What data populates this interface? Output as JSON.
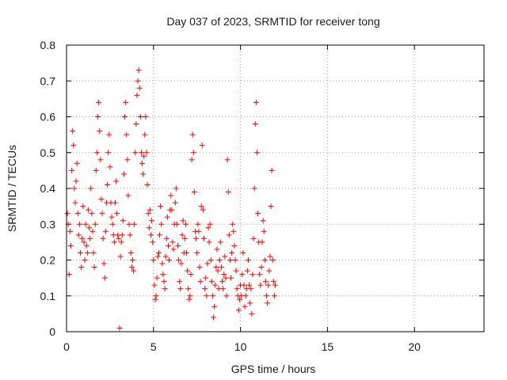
{
  "chart_data": {
    "type": "scatter",
    "title": "Day 037 of 2023, SRMTID for receiver tong",
    "xlabel": "GPS time / hours",
    "ylabel": "SRMTID / TECUs",
    "xlim": [
      0,
      24
    ],
    "ylim": [
      0,
      0.8
    ],
    "xticks": [
      0,
      5,
      10,
      15,
      20
    ],
    "xtick_labels": [
      "0",
      "5",
      "10",
      "15",
      "20"
    ],
    "yticks": [
      0,
      0.1,
      0.2,
      0.3,
      0.4,
      0.5,
      0.6,
      0.7,
      0.8
    ],
    "ytick_labels": [
      "0",
      "0.1",
      "0.2",
      "0.3",
      "0.4",
      "0.5",
      "0.6",
      "0.7",
      "0.8"
    ],
    "grid": true,
    "marker": "plus",
    "color": "#ff0000",
    "series": [
      {
        "name": "SRMTID",
        "points": [
          [
            0.05,
            0.33
          ],
          [
            0.1,
            0.3
          ],
          [
            0.15,
            0.16
          ],
          [
            0.2,
            0.28
          ],
          [
            0.25,
            0.24
          ],
          [
            0.3,
            0.45
          ],
          [
            0.35,
            0.56
          ],
          [
            0.4,
            0.52
          ],
          [
            0.45,
            0.4
          ],
          [
            0.5,
            0.36
          ],
          [
            0.55,
            0.42
          ],
          [
            0.6,
            0.47
          ],
          [
            0.65,
            0.33
          ],
          [
            0.7,
            0.27
          ],
          [
            0.75,
            0.3
          ],
          [
            0.8,
            0.22
          ],
          [
            0.85,
            0.18
          ],
          [
            0.9,
            0.26
          ],
          [
            0.95,
            0.35
          ],
          [
            1.0,
            0.25
          ],
          [
            1.05,
            0.2
          ],
          [
            1.1,
            0.3
          ],
          [
            1.15,
            0.24
          ],
          [
            1.2,
            0.22
          ],
          [
            1.25,
            0.34
          ],
          [
            1.3,
            0.29
          ],
          [
            1.35,
            0.26
          ],
          [
            1.4,
            0.4
          ],
          [
            1.45,
            0.33
          ],
          [
            1.5,
            0.28
          ],
          [
            1.55,
            0.22
          ],
          [
            1.6,
            0.18
          ],
          [
            1.65,
            0.3
          ],
          [
            1.7,
            0.45
          ],
          [
            1.75,
            0.5
          ],
          [
            1.8,
            0.6
          ],
          [
            1.85,
            0.64
          ],
          [
            1.9,
            0.56
          ],
          [
            1.95,
            0.48
          ],
          [
            2.0,
            0.37
          ],
          [
            2.05,
            0.33
          ],
          [
            2.1,
            0.26
          ],
          [
            2.15,
            0.19
          ],
          [
            2.2,
            0.15
          ],
          [
            2.25,
            0.28
          ],
          [
            2.3,
            0.36
          ],
          [
            2.35,
            0.41
          ],
          [
            2.4,
            0.5
          ],
          [
            2.45,
            0.55
          ],
          [
            2.5,
            0.46
          ],
          [
            2.55,
            0.36
          ],
          [
            2.6,
            0.32
          ],
          [
            2.65,
            0.3
          ],
          [
            2.7,
            0.27
          ],
          [
            2.75,
            0.25
          ],
          [
            2.8,
            0.36
          ],
          [
            2.85,
            0.42
          ],
          [
            2.9,
            0.33
          ],
          [
            2.95,
            0.27
          ],
          [
            3.0,
            0.26
          ],
          [
            3.05,
            0.01
          ],
          [
            3.1,
            0.21
          ],
          [
            3.15,
            0.25
          ],
          [
            3.2,
            0.27
          ],
          [
            3.25,
            0.31
          ],
          [
            3.3,
            0.44
          ],
          [
            3.35,
            0.6
          ],
          [
            3.4,
            0.64
          ],
          [
            3.45,
            0.55
          ],
          [
            3.5,
            0.48
          ],
          [
            3.55,
            0.38
          ],
          [
            3.6,
            0.3
          ],
          [
            3.65,
            0.27
          ],
          [
            3.7,
            0.22
          ],
          [
            3.75,
            0.18
          ],
          [
            3.8,
            0.2
          ],
          [
            3.85,
            0.17
          ],
          [
            3.9,
            0.3
          ],
          [
            3.95,
            0.5
          ],
          [
            4.0,
            0.58
          ],
          [
            4.05,
            0.66
          ],
          [
            4.1,
            0.7
          ],
          [
            4.15,
            0.73
          ],
          [
            4.2,
            0.68
          ],
          [
            4.25,
            0.6
          ],
          [
            4.3,
            0.5
          ],
          [
            4.35,
            0.47
          ],
          [
            4.4,
            0.44
          ],
          [
            4.45,
            0.49
          ],
          [
            4.5,
            0.55
          ],
          [
            4.55,
            0.6
          ],
          [
            4.6,
            0.5
          ],
          [
            4.65,
            0.41
          ],
          [
            4.7,
            0.33
          ],
          [
            4.75,
            0.29
          ],
          [
            4.8,
            0.34
          ],
          [
            4.85,
            0.27
          ],
          [
            4.9,
            0.31
          ],
          [
            4.95,
            0.25
          ],
          [
            5.0,
            0.2
          ],
          [
            5.05,
            0.13
          ],
          [
            5.1,
            0.09
          ],
          [
            5.15,
            0.1
          ],
          [
            5.2,
            0.15
          ],
          [
            5.25,
            0.21
          ],
          [
            5.3,
            0.22
          ],
          [
            5.35,
            0.27
          ],
          [
            5.4,
            0.35
          ],
          [
            5.45,
            0.3
          ],
          [
            5.5,
            0.19
          ],
          [
            5.55,
            0.16
          ],
          [
            5.6,
            0.14
          ],
          [
            5.65,
            0.12
          ],
          [
            5.7,
            0.21
          ],
          [
            5.75,
            0.26
          ],
          [
            5.8,
            0.32
          ],
          [
            5.85,
            0.24
          ],
          [
            5.9,
            0.2
          ],
          [
            5.95,
            0.34
          ],
          [
            6.0,
            0.38
          ],
          [
            6.05,
            0.34
          ],
          [
            6.1,
            0.25
          ],
          [
            6.15,
            0.23
          ],
          [
            6.2,
            0.3
          ],
          [
            6.25,
            0.36
          ],
          [
            6.3,
            0.4
          ],
          [
            6.35,
            0.3
          ],
          [
            6.4,
            0.24
          ],
          [
            6.45,
            0.2
          ],
          [
            6.5,
            0.14
          ],
          [
            6.55,
            0.12
          ],
          [
            6.6,
            0.19
          ],
          [
            6.65,
            0.27
          ],
          [
            6.7,
            0.31
          ],
          [
            6.75,
            0.22
          ],
          [
            6.8,
            0.26
          ],
          [
            6.85,
            0.3
          ],
          [
            6.9,
            0.22
          ],
          [
            6.95,
            0.17
          ],
          [
            7.0,
            0.12
          ],
          [
            7.05,
            0.09
          ],
          [
            7.1,
            0.1
          ],
          [
            7.15,
            0.16
          ],
          [
            7.2,
            0.48
          ],
          [
            7.25,
            0.55
          ],
          [
            7.3,
            0.5
          ],
          [
            7.35,
            0.39
          ],
          [
            7.4,
            0.28
          ],
          [
            7.45,
            0.26
          ],
          [
            7.5,
            0.22
          ],
          [
            7.55,
            0.3
          ],
          [
            7.6,
            0.28
          ],
          [
            7.65,
            0.18
          ],
          [
            7.7,
            0.14
          ],
          [
            7.75,
            0.35
          ],
          [
            7.8,
            0.52
          ],
          [
            7.85,
            0.34
          ],
          [
            7.9,
            0.26
          ],
          [
            7.95,
            0.12
          ],
          [
            8.0,
            0.15
          ],
          [
            8.05,
            0.1
          ],
          [
            8.1,
            0.19
          ],
          [
            8.15,
            0.29
          ],
          [
            8.2,
            0.25
          ],
          [
            8.25,
            0.3
          ],
          [
            8.3,
            0.2
          ],
          [
            8.35,
            0.14
          ],
          [
            8.4,
            0.1
          ],
          [
            8.45,
            0.04
          ],
          [
            8.5,
            0.07
          ],
          [
            8.55,
            0.13
          ],
          [
            8.6,
            0.18
          ],
          [
            8.65,
            0.23
          ],
          [
            8.7,
            0.17
          ],
          [
            8.75,
            0.12
          ],
          [
            8.8,
            0.2
          ],
          [
            8.85,
            0.25
          ],
          [
            8.9,
            0.18
          ],
          [
            8.95,
            0.14
          ],
          [
            9.0,
            0.12
          ],
          [
            9.05,
            0.16
          ],
          [
            9.1,
            0.21
          ],
          [
            9.15,
            0.15
          ],
          [
            9.2,
            0.1
          ],
          [
            9.25,
            0.48
          ],
          [
            9.3,
            0.39
          ],
          [
            9.35,
            0.27
          ],
          [
            9.4,
            0.2
          ],
          [
            9.45,
            0.15
          ],
          [
            9.5,
            0.22
          ],
          [
            9.55,
            0.3
          ],
          [
            9.6,
            0.28
          ],
          [
            9.65,
            0.24
          ],
          [
            9.7,
            0.2
          ],
          [
            9.75,
            0.17
          ],
          [
            9.8,
            0.12
          ],
          [
            9.85,
            0.1
          ],
          [
            9.9,
            0.06
          ],
          [
            9.95,
            0.09
          ],
          [
            10.0,
            0.13
          ],
          [
            10.05,
            0.1
          ],
          [
            10.1,
            0.16
          ],
          [
            10.15,
            0.22
          ],
          [
            10.2,
            0.13
          ],
          [
            10.25,
            0.07
          ],
          [
            10.3,
            0.1
          ],
          [
            10.35,
            0.12
          ],
          [
            10.4,
            0.17
          ],
          [
            10.45,
            0.2
          ],
          [
            10.5,
            0.13
          ],
          [
            10.55,
            0.08
          ],
          [
            10.6,
            0.12
          ],
          [
            10.65,
            0.05
          ],
          [
            10.7,
            0.16
          ],
          [
            10.75,
            0.26
          ],
          [
            10.8,
            0.4
          ],
          [
            10.85,
            0.58
          ],
          [
            10.9,
            0.64
          ],
          [
            10.95,
            0.5
          ],
          [
            11.0,
            0.33
          ],
          [
            11.05,
            0.25
          ],
          [
            11.1,
            0.16
          ],
          [
            11.15,
            0.13
          ],
          [
            11.2,
            0.18
          ],
          [
            11.25,
            0.25
          ],
          [
            11.3,
            0.31
          ],
          [
            11.35,
            0.28
          ],
          [
            11.4,
            0.2
          ],
          [
            11.45,
            0.14
          ],
          [
            11.5,
            0.1
          ],
          [
            11.55,
            0.08
          ],
          [
            11.6,
            0.13
          ],
          [
            11.65,
            0.17
          ],
          [
            11.7,
            0.21
          ],
          [
            11.75,
            0.35
          ],
          [
            11.8,
            0.45
          ],
          [
            11.85,
            0.2
          ],
          [
            11.9,
            0.14
          ],
          [
            11.95,
            0.1
          ],
          [
            12.0,
            0.13
          ]
        ]
      }
    ]
  }
}
